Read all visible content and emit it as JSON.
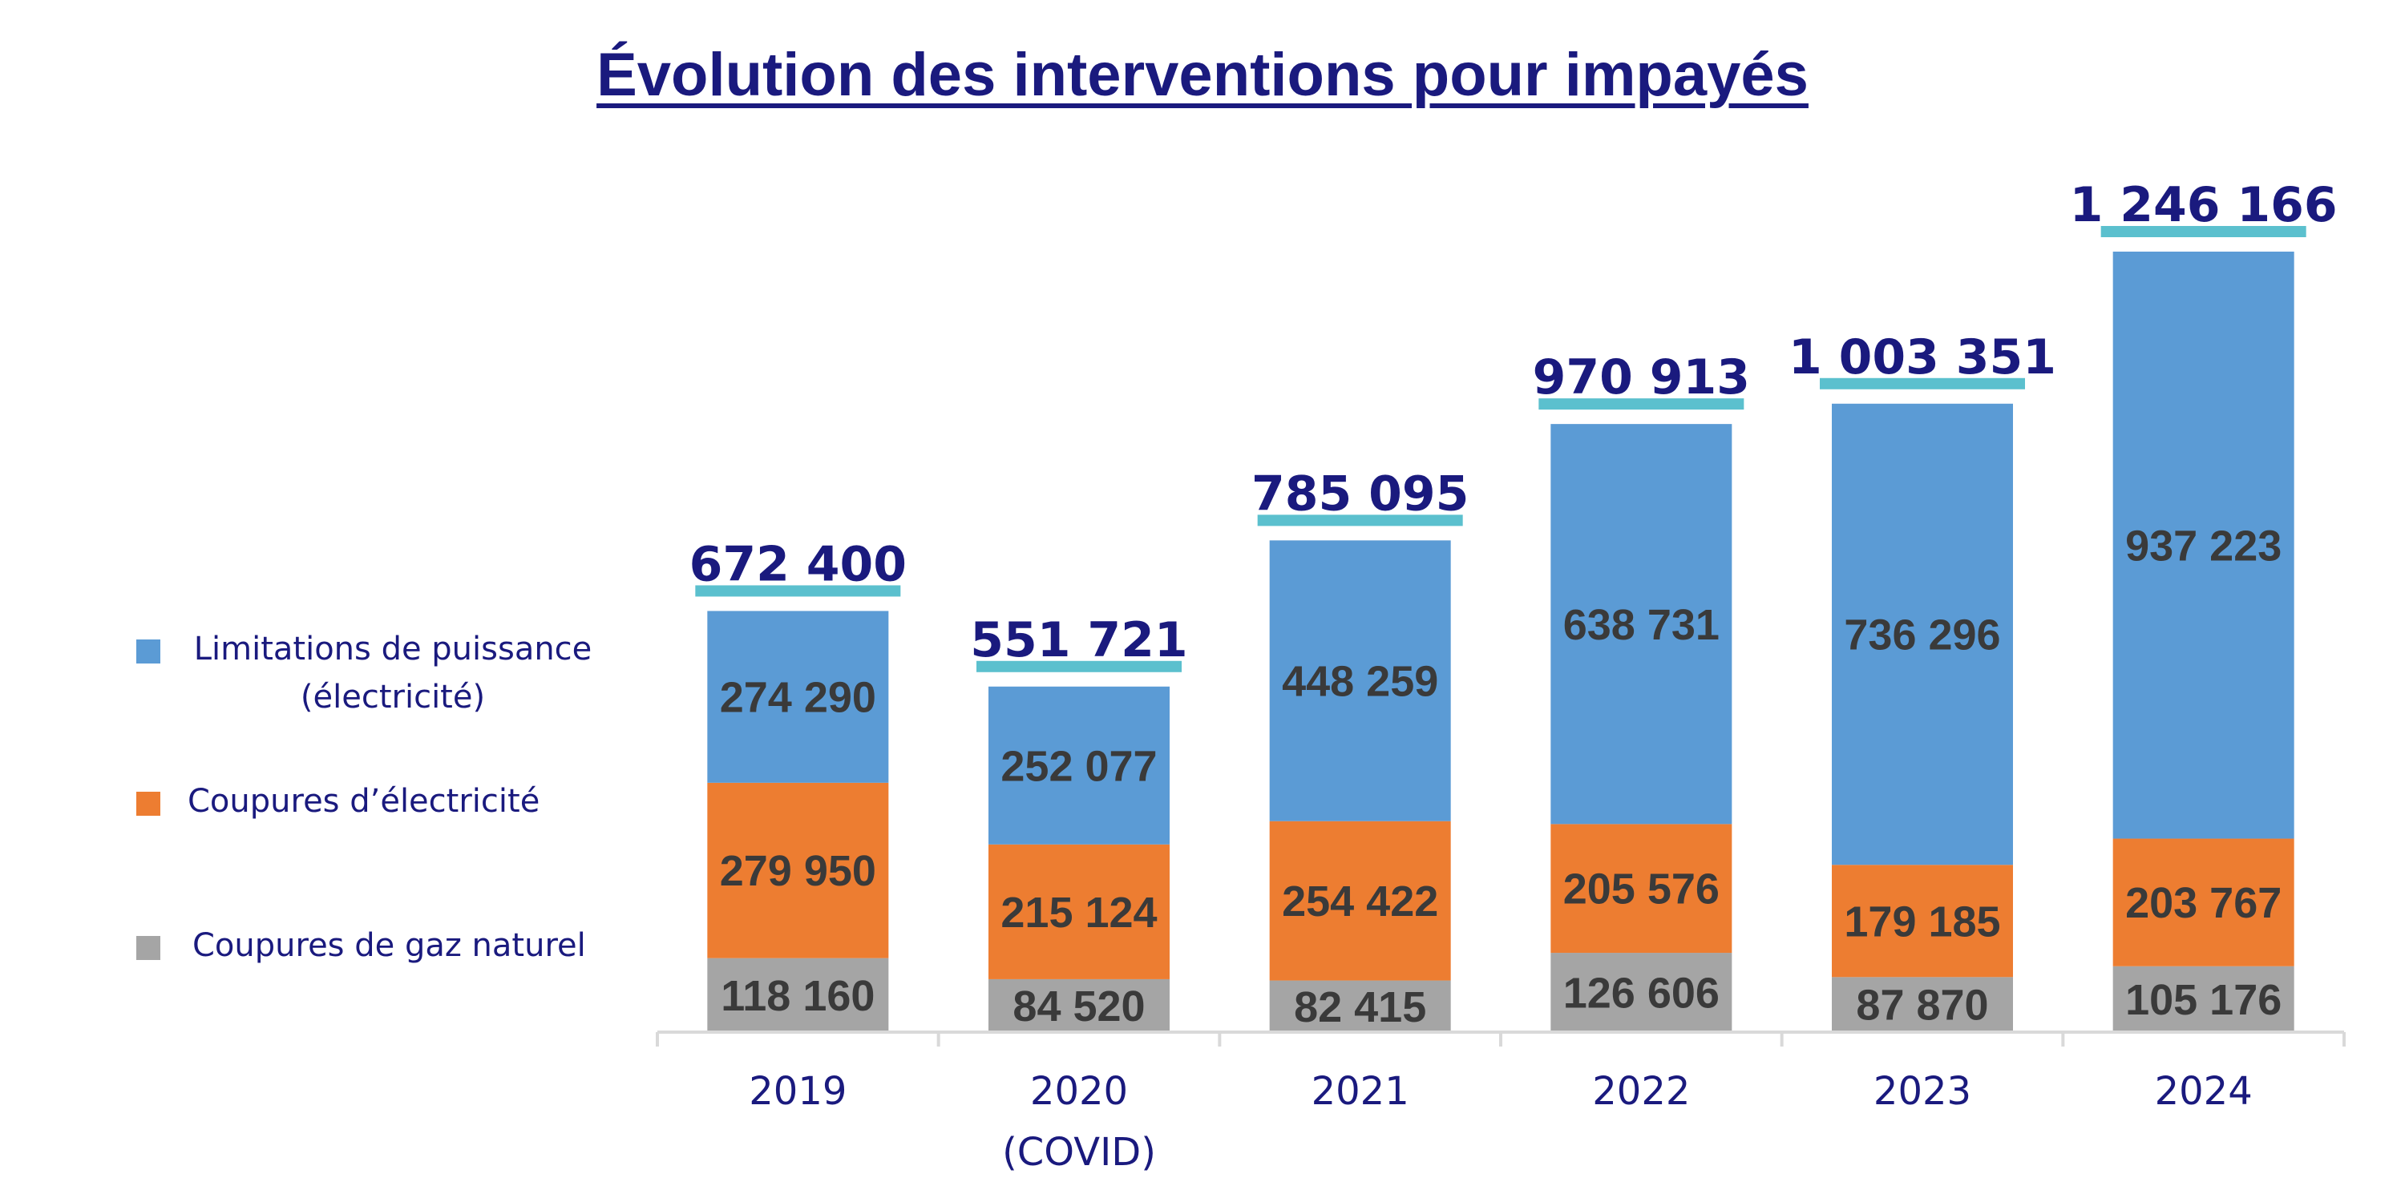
{
  "chart_data": {
    "type": "bar",
    "stacked": true,
    "title": "Évolution des interventions pour impayés",
    "categories": [
      "2019",
      "2020\n(COVID)",
      "2021",
      "2022",
      "2023",
      "2024"
    ],
    "series": [
      {
        "name": "Coupures de gaz naturel",
        "values": [
          118160,
          84520,
          82415,
          126606,
          87870,
          105176
        ],
        "labels": [
          "118 160",
          "84 520",
          "82 415",
          "126 606",
          "87 870",
          "105 176"
        ],
        "color": "#a5a5a5"
      },
      {
        "name": "Coupures d’électricité",
        "values": [
          279950,
          215124,
          254422,
          205576,
          179185,
          203767
        ],
        "labels": [
          "279 950",
          "215 124",
          "254 422",
          "205 576",
          "179 185",
          "203 767"
        ],
        "color": "#ed7d31"
      },
      {
        "name": "Limitations de puissance (électricité)",
        "values": [
          274290,
          252077,
          448259,
          638731,
          736296,
          937223
        ],
        "labels": [
          "274 290",
          "252 077",
          "448 259",
          "638 731",
          "736 296",
          "937 223"
        ],
        "color": "#5b9bd5"
      }
    ],
    "totals": [
      "672 400",
      "551 721",
      "785 095",
      "970 913",
      "1 003 351",
      "1 246 166"
    ],
    "total_underline_color": "#5bc0ce",
    "axis_color": "#d9d9d9",
    "legend_position": "left",
    "grid": false,
    "ylim": [
      0,
      1246166
    ]
  },
  "legend": {
    "items": [
      {
        "label": "Limitations de puissance (électricité)",
        "color": "#5b9bd5"
      },
      {
        "label": "Coupures d’électricité",
        "color": "#ed7d31"
      },
      {
        "label": "Coupures de gaz naturel",
        "color": "#a5a5a5"
      }
    ]
  }
}
